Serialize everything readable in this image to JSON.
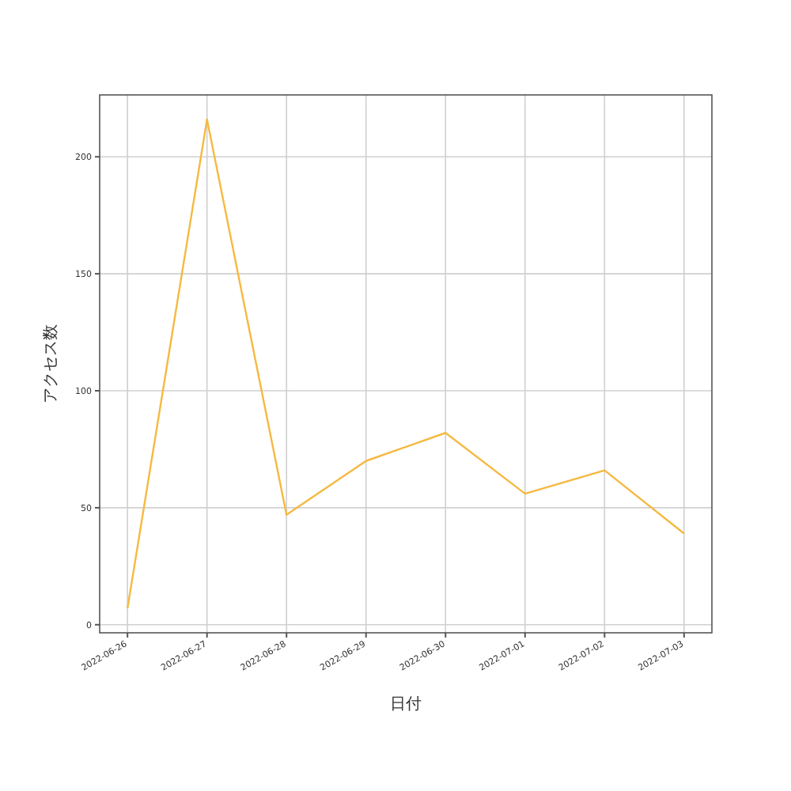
{
  "chart_data": {
    "type": "line",
    "xlabel": "日付",
    "ylabel": "アクセス数",
    "x": [
      "2022-06-26",
      "2022-06-27",
      "2022-06-28",
      "2022-06-29",
      "2022-06-30",
      "2022-07-01",
      "2022-07-02",
      "2022-07-03"
    ],
    "series": [
      {
        "color": "#f5b942",
        "values": [
          7,
          216,
          47,
          70,
          82,
          56,
          66,
          39
        ]
      }
    ],
    "xlim": [
      "2022-06-25T15:36",
      "2022-07-03T08:24"
    ],
    "xticks": [
      "2022-06-26",
      "2022-06-27",
      "2022-06-28",
      "2022-06-29",
      "2022-06-30",
      "2022-07-01",
      "2022-07-02",
      "2022-07-03"
    ],
    "ylim": [
      -3.45,
      226.45
    ],
    "yticks": [
      0,
      50,
      100,
      150,
      200
    ],
    "grid": true,
    "marker": "none",
    "line_style": "solid"
  }
}
